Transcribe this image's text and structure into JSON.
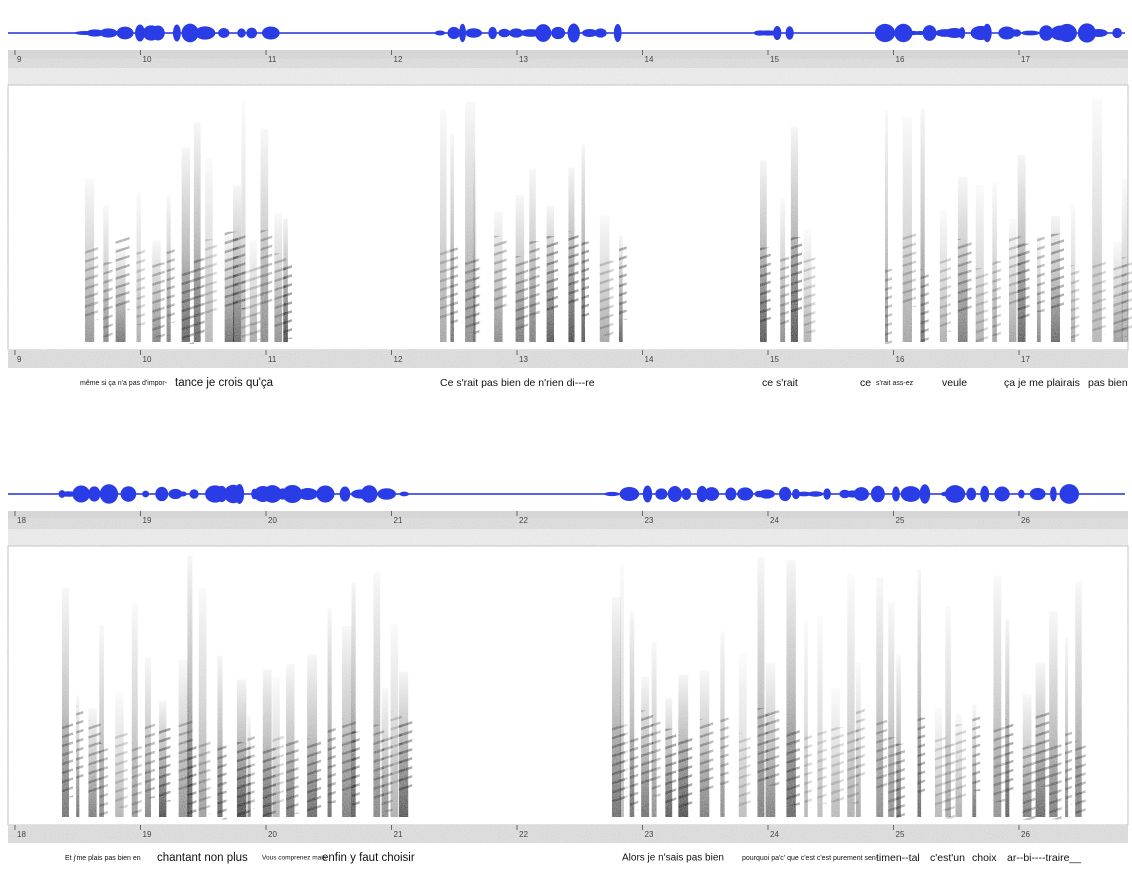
{
  "panels": [
    {
      "time_ticks": [
        9,
        10,
        11,
        12,
        13,
        14,
        15,
        16,
        17
      ],
      "transcript": [
        "même si ça n'a pas d'impor-",
        "tance je crois qu'ça",
        "Ce s'rait  pas  bien de  n'rien  di---re",
        "ce s'rait",
        "ce",
        "s'rait ass-ez",
        "veule",
        "ça je me plairais",
        "pas bien"
      ]
    },
    {
      "time_ticks": [
        18,
        19,
        20,
        21,
        22,
        23,
        24,
        25,
        26
      ],
      "transcript": [
        "Et j'me plais pas bien en",
        "chantant non plus",
        "Vous comprenez mais",
        "enfin y faut choisir",
        "Alors je n'sais pas bien",
        "pourquoi pa'c' que c'est c'est purement sen-",
        "timen--tal",
        "c'est'un",
        "choix",
        "ar--bi----traire__"
      ]
    }
  ]
}
